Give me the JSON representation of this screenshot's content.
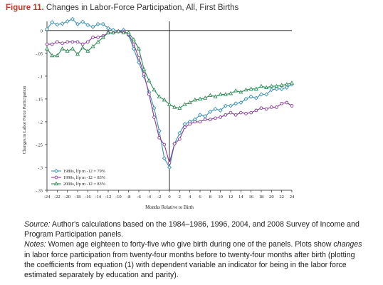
{
  "figure": {
    "number": "Figure 11.",
    "title": "Changes in Labor-Force Participation, All, First Births"
  },
  "chart_data": {
    "type": "line",
    "xlabel": "Months Relative to Birth",
    "ylabel": "Changes in Labor Force Participation",
    "xlim": [
      -24,
      24
    ],
    "ylim": [
      -0.35,
      0.02
    ],
    "x_ticks": [
      "-24",
      "-22",
      "-20",
      "-18",
      "-16",
      "-14",
      "-12",
      "-10",
      "-8",
      "-6",
      "-4",
      "-2",
      "0",
      "2",
      "4",
      "6",
      "8",
      "10",
      "12",
      "14",
      "16",
      "18",
      "20",
      "22",
      "24"
    ],
    "y_ticks": [
      "0",
      "-.05",
      "-.1",
      "-.15",
      "-.2",
      "-.25",
      "-.3",
      "-.35"
    ],
    "zero_line": true,
    "birth_line_x": 0,
    "legend_position": "bottom-left",
    "x": [
      -24,
      -23,
      -22,
      -21,
      -20,
      -19,
      -18,
      -17,
      -16,
      -15,
      -14,
      -13,
      -12,
      -11,
      -10,
      -9,
      -8,
      -7,
      -6,
      -5,
      -4,
      -3,
      -2,
      -1,
      0,
      1,
      2,
      3,
      4,
      5,
      6,
      7,
      8,
      9,
      10,
      11,
      12,
      13,
      14,
      15,
      16,
      17,
      18,
      19,
      20,
      21,
      22,
      23,
      24
    ],
    "series": [
      {
        "name": "1980s, lfp m -12 = 79%",
        "color": "#3a8fb0",
        "marker": "diamond",
        "values": [
          0.003,
          0.018,
          0.013,
          0.015,
          0.02,
          0.025,
          0.014,
          0.019,
          0.012,
          0.008,
          0.014,
          0.014,
          0.005,
          0.001,
          -0.002,
          0.001,
          -0.01,
          -0.04,
          -0.07,
          -0.1,
          -0.135,
          -0.17,
          -0.22,
          -0.28,
          -0.3,
          -0.248,
          -0.225,
          -0.205,
          -0.2,
          -0.195,
          -0.185,
          -0.188,
          -0.178,
          -0.172,
          -0.175,
          -0.165,
          -0.165,
          -0.16,
          -0.158,
          -0.15,
          -0.145,
          -0.148,
          -0.14,
          -0.14,
          -0.13,
          -0.128,
          -0.128,
          -0.125,
          -0.118
        ]
      },
      {
        "name": "1990s, lfp m -12 = 83%",
        "color": "#8a3a9a",
        "marker": "circle",
        "values": [
          -0.03,
          -0.03,
          -0.025,
          -0.028,
          -0.025,
          -0.025,
          -0.025,
          -0.03,
          -0.025,
          -0.015,
          -0.015,
          -0.012,
          -0.005,
          -0.005,
          -0.002,
          -0.002,
          -0.008,
          -0.03,
          -0.06,
          -0.095,
          -0.14,
          -0.19,
          -0.235,
          -0.25,
          -0.29,
          -0.248,
          -0.238,
          -0.212,
          -0.205,
          -0.2,
          -0.2,
          -0.195,
          -0.195,
          -0.192,
          -0.19,
          -0.185,
          -0.18,
          -0.185,
          -0.18,
          -0.182,
          -0.18,
          -0.175,
          -0.17,
          -0.172,
          -0.168,
          -0.168,
          -0.16,
          -0.158,
          -0.165
        ]
      },
      {
        "name": "2000s, lfp m -12 = 83%",
        "color": "#2e8a55",
        "marker": "triangle",
        "values": [
          -0.04,
          -0.055,
          -0.055,
          -0.04,
          -0.045,
          -0.04,
          -0.052,
          -0.038,
          -0.045,
          -0.035,
          -0.025,
          -0.015,
          -0.005,
          -0.005,
          -0.002,
          -0.005,
          -0.005,
          -0.02,
          -0.04,
          -0.085,
          -0.11,
          -0.13,
          -0.145,
          -0.152,
          -0.162,
          -0.168,
          -0.17,
          -0.162,
          -0.158,
          -0.152,
          -0.15,
          -0.148,
          -0.142,
          -0.145,
          -0.14,
          -0.14,
          -0.138,
          -0.132,
          -0.135,
          -0.13,
          -0.128,
          -0.128,
          -0.122,
          -0.125,
          -0.122,
          -0.122,
          -0.12,
          -0.118,
          -0.115
        ]
      }
    ]
  },
  "notes": {
    "source_label": "Source:",
    "source_text": " Author's calculations based on the 1984–1986, 1996, 2004, and 2008 Survey of Income and Program Participation panels.",
    "notes_label": "Notes:",
    "notes_text_a": " Women age eighteen to forty-five who give birth during one of the panels. Plots show ",
    "notes_emph": "changes",
    "notes_text_b": " in labor force participation from twenty-four months before to twenty-four months after birth (plotting the coefficients from equation (1) with dependent variable an indicator for being in the labor force estimated separately by education and parity)."
  }
}
